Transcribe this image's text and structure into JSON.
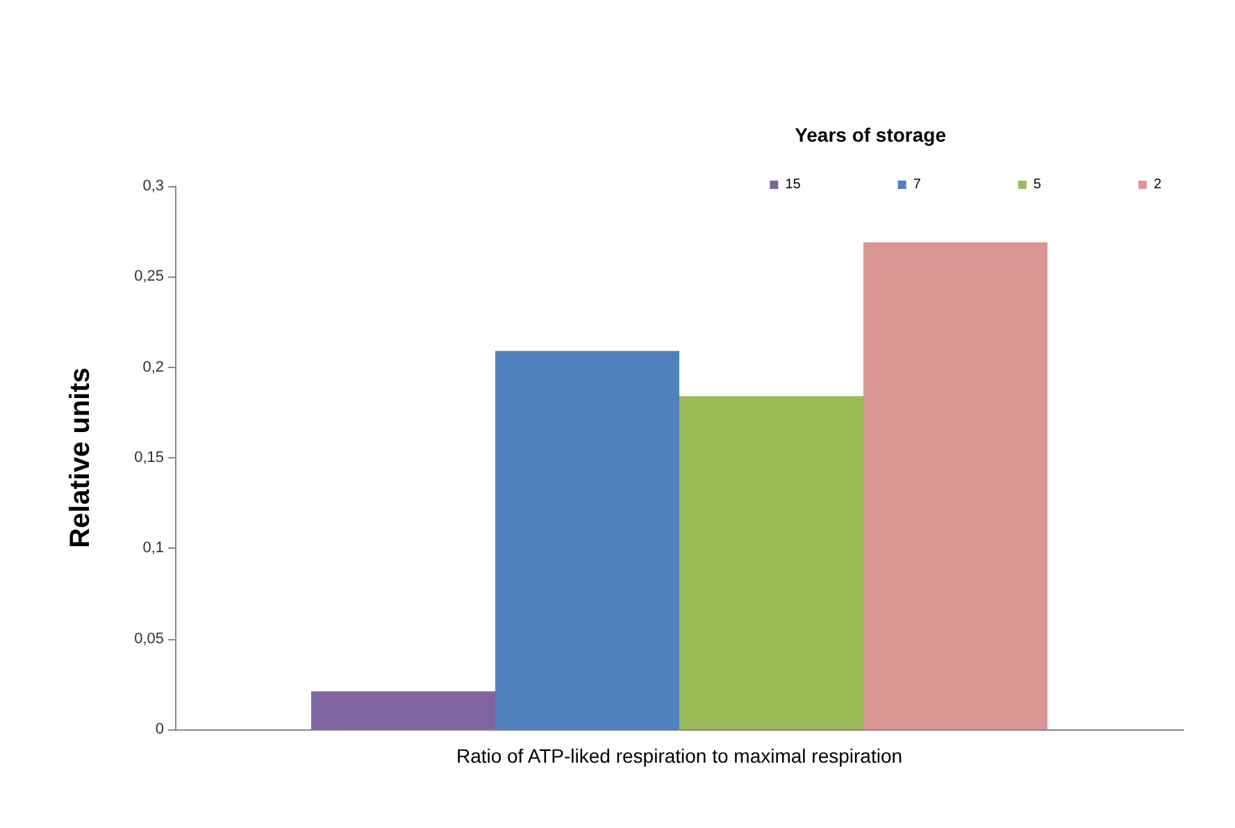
{
  "chart_data": {
    "type": "bar",
    "ylabel": "Relative units",
    "legend_title": "Years of storage",
    "categories": [
      "Ratio of ATP-liked respiration to maximal respiration"
    ],
    "series": [
      {
        "name": "15",
        "color": "#8064a2",
        "values": [
          0.021
        ]
      },
      {
        "name": "7",
        "color": "#4f81bd",
        "values": [
          0.209
        ]
      },
      {
        "name": "5",
        "color": "#9bbb59",
        "values": [
          0.184
        ]
      },
      {
        "name": "2",
        "color": "#d99694",
        "values": [
          0.269
        ]
      }
    ],
    "ylim": [
      0,
      0.3
    ],
    "yticks": [
      {
        "value": 0,
        "label": "0"
      },
      {
        "value": 0.05,
        "label": "0,05"
      },
      {
        "value": 0.1,
        "label": "0,1"
      },
      {
        "value": 0.15,
        "label": "0,15"
      },
      {
        "value": 0.2,
        "label": "0,2"
      },
      {
        "value": 0.25,
        "label": "0,25"
      },
      {
        "value": 0.3,
        "label": "0,3"
      }
    ],
    "grid": false,
    "legend": "top right"
  }
}
